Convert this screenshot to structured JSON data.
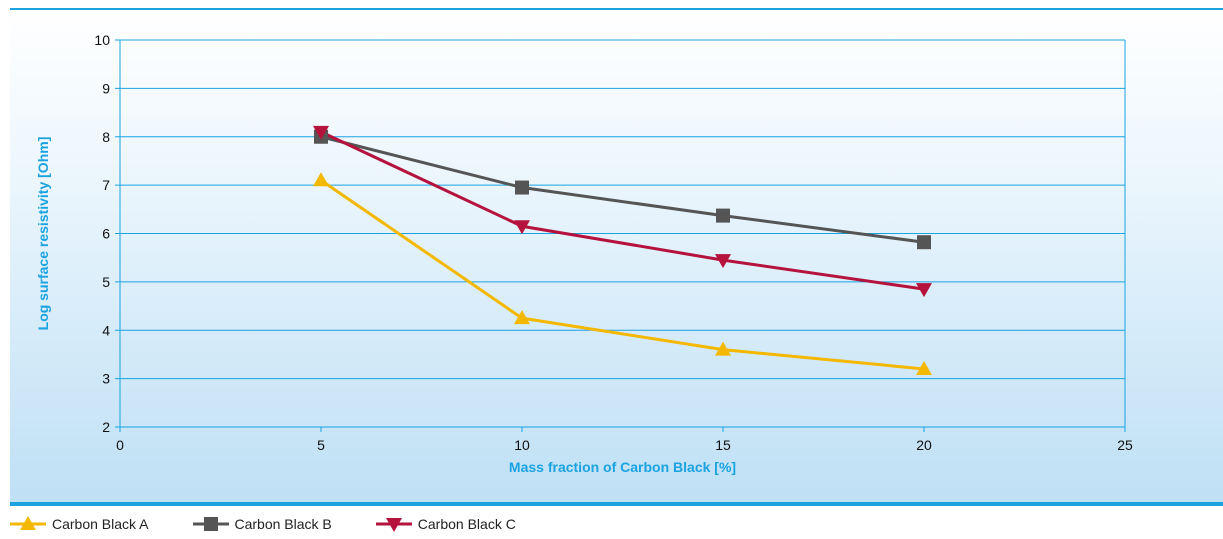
{
  "chart_data": {
    "type": "line",
    "xlabel": "Mass fraction of Carbon Black [%]",
    "ylabel": "Log surface resistivity [Ohm]",
    "xlim": [
      0,
      25
    ],
    "ylim": [
      2,
      10
    ],
    "xticks": [
      0,
      5,
      10,
      15,
      20,
      25
    ],
    "yticks": [
      2,
      3,
      4,
      5,
      6,
      7,
      8,
      9,
      10
    ],
    "grid": "horizontal",
    "legend_position": "bottom-left",
    "x": [
      5,
      10,
      15,
      20
    ],
    "series": [
      {
        "name": "Carbon Black A",
        "values": [
          7.1,
          4.25,
          3.6,
          3.2
        ],
        "color": "#f5b800",
        "marker": "triangle-up"
      },
      {
        "name": "Carbon Black B",
        "values": [
          8.0,
          6.95,
          6.37,
          5.82
        ],
        "color": "#555555",
        "marker": "square"
      },
      {
        "name": "Carbon Black C",
        "values": [
          8.1,
          6.15,
          5.45,
          4.85
        ],
        "color": "#b5123d",
        "marker": "triangle-down"
      }
    ],
    "colors": {
      "axis_title": "#1aa3e0",
      "grid": "#1aa3e0"
    }
  }
}
